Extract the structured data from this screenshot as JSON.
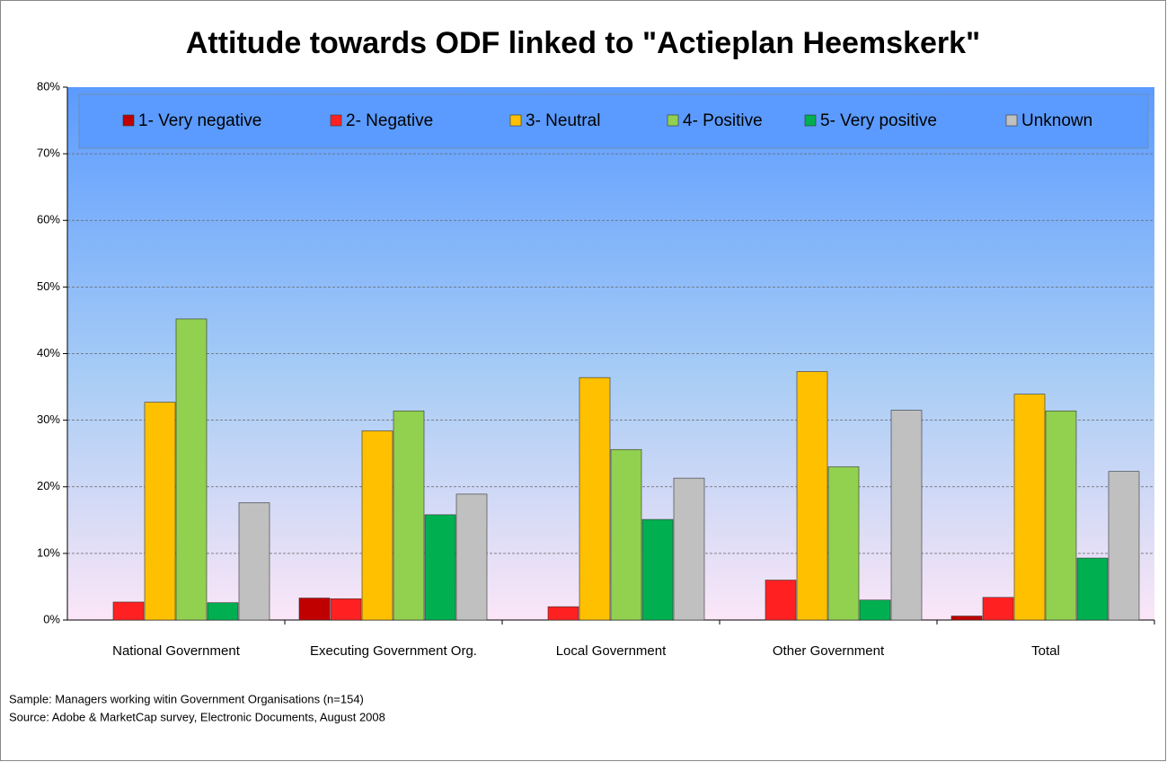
{
  "chart_data": {
    "type": "bar",
    "title": "Attitude towards ODF linked to \"Actieplan Heemskerk\"",
    "categories": [
      "National Government",
      "Executing Government Org.",
      "Local Government",
      "Other Government",
      "Total"
    ],
    "series": [
      {
        "name": "1- Very negative",
        "color": "#c00000",
        "values": [
          0,
          3.3,
          0,
          0,
          0.6
        ]
      },
      {
        "name": "2- Negative",
        "color": "#ff2121",
        "values": [
          2.7,
          3.2,
          2.0,
          6.0,
          3.4
        ]
      },
      {
        "name": "3- Neutral",
        "color": "#ffc000",
        "values": [
          32.7,
          28.4,
          36.4,
          37.3,
          33.9
        ]
      },
      {
        "name": "4- Positive",
        "color": "#92d050",
        "values": [
          45.2,
          31.4,
          25.6,
          23.0,
          31.4
        ]
      },
      {
        "name": "5- Very positive",
        "color": "#00b050",
        "values": [
          2.6,
          15.8,
          15.1,
          3.0,
          9.3
        ]
      },
      {
        "name": "Unknown",
        "color": "#c0c0c0",
        "values": [
          17.6,
          18.9,
          21.3,
          31.5,
          22.3
        ]
      }
    ],
    "ylim": [
      0,
      80
    ],
    "yticks": [
      {
        "value": 0,
        "label": "0%"
      },
      {
        "value": 10,
        "label": "10%"
      },
      {
        "value": 20,
        "label": "20%"
      },
      {
        "value": 30,
        "label": "30%"
      },
      {
        "value": 40,
        "label": "40%"
      },
      {
        "value": 50,
        "label": "50%"
      },
      {
        "value": 60,
        "label": "60%"
      },
      {
        "value": 70,
        "label": "70%"
      },
      {
        "value": 80,
        "label": "80%"
      }
    ],
    "grid": true,
    "legend": "top",
    "notes": [
      "Sample: Managers working witin Government Organisations (n=154)",
      "Source: Adobe & MarketCap survey, Electronic Documents, August 2008"
    ]
  }
}
